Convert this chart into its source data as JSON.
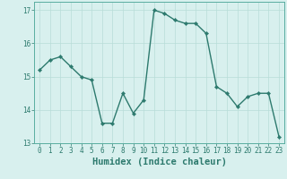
{
  "x": [
    0,
    1,
    2,
    3,
    4,
    5,
    6,
    7,
    8,
    9,
    10,
    11,
    12,
    13,
    14,
    15,
    16,
    17,
    18,
    19,
    20,
    21,
    22,
    23
  ],
  "y": [
    15.2,
    15.5,
    15.6,
    15.3,
    15.0,
    14.9,
    13.6,
    13.6,
    14.5,
    13.9,
    14.3,
    17.0,
    16.9,
    16.7,
    16.6,
    16.6,
    16.3,
    14.7,
    14.5,
    14.1,
    14.4,
    14.5,
    14.5,
    13.2
  ],
  "line_color": "#2d7a6e",
  "marker": "D",
  "markersize": 2.2,
  "linewidth": 1.0,
  "bg_color": "#d8f0ee",
  "grid_color": "#b8ddd8",
  "xlabel": "Humidex (Indice chaleur)",
  "ylim": [
    13,
    17.25
  ],
  "xlim": [
    -0.5,
    23.5
  ],
  "yticks": [
    13,
    14,
    15,
    16,
    17
  ],
  "xticks": [
    0,
    1,
    2,
    3,
    4,
    5,
    6,
    7,
    8,
    9,
    10,
    11,
    12,
    13,
    14,
    15,
    16,
    17,
    18,
    19,
    20,
    21,
    22,
    23
  ],
  "xtick_labels": [
    "0",
    "1",
    "2",
    "3",
    "4",
    "5",
    "6",
    "7",
    "8",
    "9",
    "10",
    "11",
    "12",
    "13",
    "14",
    "15",
    "16",
    "17",
    "18",
    "19",
    "20",
    "21",
    "22",
    "23"
  ],
  "tick_color": "#2d7a6e",
  "label_color": "#2d7a6e",
  "tick_fontsize": 5.5,
  "xlabel_fontsize": 7.5,
  "spine_color": "#5aada0"
}
